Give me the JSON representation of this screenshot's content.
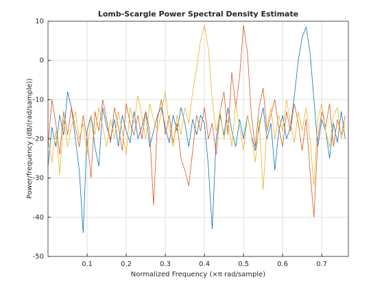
{
  "chart_data": {
    "type": "line",
    "title": "Lomb-Scargle Power Spectral Density Estimate",
    "xlabel": "Normalized Frequency  (×π rad/sample)",
    "ylabel": "Power/frequency (dB/(rad/sample))",
    "x": [
      0,
      0.01,
      0.02,
      0.03,
      0.04,
      0.05,
      0.06,
      0.07,
      0.08,
      0.09,
      0.1,
      0.11,
      0.12,
      0.13,
      0.14,
      0.15,
      0.16,
      0.17,
      0.18,
      0.19,
      0.2,
      0.21,
      0.22,
      0.23,
      0.24,
      0.25,
      0.26,
      0.27,
      0.28,
      0.29,
      0.3,
      0.31,
      0.32,
      0.33,
      0.34,
      0.35,
      0.36,
      0.37,
      0.38,
      0.39,
      0.4,
      0.41,
      0.42,
      0.43,
      0.44,
      0.45,
      0.46,
      0.47,
      0.48,
      0.49,
      0.5,
      0.51,
      0.52,
      0.53,
      0.54,
      0.55,
      0.56,
      0.57,
      0.58,
      0.59,
      0.6,
      0.61,
      0.62,
      0.63,
      0.64,
      0.65,
      0.66,
      0.67,
      0.68,
      0.69,
      0.7,
      0.71,
      0.72,
      0.73,
      0.74,
      0.75,
      0.76
    ],
    "series": [
      {
        "color": "#0072BD",
        "values": [
          -27,
          -17,
          -22,
          -14,
          -19,
          -8,
          -12,
          -20,
          -28,
          -44,
          -18,
          -14,
          -22,
          -27,
          -12,
          -17,
          -20,
          -15,
          -22,
          -14,
          -18,
          -21,
          -13,
          -20,
          -17,
          -13,
          -22,
          -18,
          -14,
          -12,
          -17,
          -21,
          -14,
          -18,
          -12,
          -16,
          -22,
          -15,
          -19,
          -14,
          -16,
          -27,
          -43,
          -20,
          -14,
          -19,
          -12,
          -18,
          -22,
          -15,
          -20,
          -14,
          -19,
          -23,
          -17,
          -12,
          -20,
          -16,
          -28,
          -18,
          -14,
          -20,
          -17,
          -9,
          0,
          6,
          8.5,
          2,
          -10,
          -22,
          -15,
          -18,
          -25,
          -16,
          -21,
          -13,
          -20
        ]
      },
      {
        "color": "#D95319",
        "values": [
          -22,
          -10,
          -16,
          -24,
          -13,
          -19,
          -12,
          -17,
          -22,
          -14,
          -20,
          -30,
          -13,
          -18,
          -10,
          -15,
          -21,
          -12,
          -17,
          -23,
          -11,
          -16,
          -19,
          -14,
          -20,
          -13,
          -18,
          -37,
          -15,
          -10,
          -19,
          -14,
          -21,
          -16,
          -25,
          -28,
          -32,
          -23,
          -14,
          -18,
          -12,
          -20,
          -16,
          -24,
          -13,
          -8,
          -19,
          -3,
          -12,
          -4,
          9,
          2,
          -14,
          -22,
          -12,
          -7,
          -18,
          -14,
          -10,
          -17,
          -22,
          -13,
          -18,
          -11,
          -16,
          -23,
          -15,
          -28,
          -40,
          -20,
          -13,
          -17,
          -11,
          -22,
          -15,
          -19,
          -14
        ]
      },
      {
        "color": "#EDB120",
        "values": [
          -20,
          -26,
          -18,
          -29,
          -15,
          -22,
          -17,
          -13,
          -20,
          -16,
          -24,
          -14,
          -19,
          -12,
          -17,
          -22,
          -15,
          -20,
          -13,
          -18,
          -24,
          -12,
          -16,
          -9,
          -14,
          -20,
          -11,
          -15,
          -18,
          -13,
          -8,
          -17,
          -22,
          -14,
          -19,
          -12,
          -16,
          -8,
          -2,
          5,
          9,
          3,
          -10,
          -18,
          -13,
          -20,
          -15,
          -22,
          -11,
          -17,
          -23,
          -14,
          -19,
          -26,
          -15,
          -33,
          -17,
          -12,
          -20,
          -14,
          -18,
          -10,
          -16,
          -21,
          -13,
          -18,
          -12,
          -20,
          -32,
          -15,
          -11,
          -18,
          -22,
          -14,
          -12,
          -20,
          -16
        ]
      }
    ],
    "xlim": [
      0,
      0.768
    ],
    "ylim": [
      -50,
      10
    ],
    "xticks": [
      0.1,
      0.2,
      0.3,
      0.4,
      0.5,
      0.6,
      0.7
    ],
    "yticks": [
      -50,
      -40,
      -30,
      -20,
      -10,
      0,
      10
    ],
    "grid": true
  }
}
